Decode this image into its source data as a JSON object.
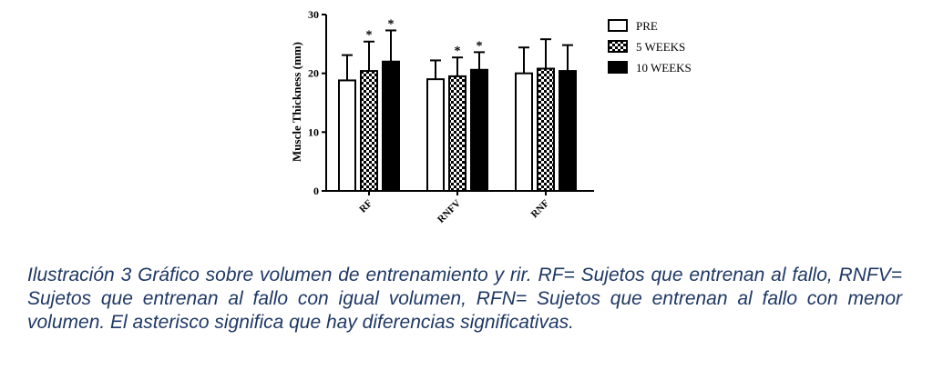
{
  "chart_data": {
    "type": "bar",
    "ylabel": "Muscle Thickness (mm)",
    "ylim": [
      0,
      30
    ],
    "yticks": [
      0,
      10,
      20,
      30
    ],
    "categories": [
      "RF",
      "RNFV",
      "RNF"
    ],
    "series": [
      {
        "name": "PRE",
        "values": [
          18.8,
          19.0,
          20.0
        ],
        "errors": [
          4.3,
          3.2,
          4.4
        ],
        "fill": "white",
        "significant": [
          false,
          false,
          false
        ]
      },
      {
        "name": "5 WEEKS",
        "values": [
          20.4,
          19.5,
          20.8
        ],
        "errors": [
          5.0,
          3.2,
          5.0
        ],
        "fill": "checker",
        "significant": [
          true,
          true,
          false
        ]
      },
      {
        "name": "10 WEEKS",
        "values": [
          22.0,
          20.6,
          20.4
        ],
        "errors": [
          5.3,
          3.0,
          4.4
        ],
        "fill": "black",
        "significant": [
          true,
          true,
          false
        ]
      }
    ],
    "significance_marker": "*",
    "legend_position": "top-right",
    "grid": false
  },
  "caption": "Ilustración 3 Gráfico sobre volumen de entrenamiento y rir. RF= Sujetos que entrenan al fallo, RNFV= Sujetos que entrenan al fallo con igual volumen, RFN= Sujetos que entrenan al fallo con menor volumen. El asterisco significa que hay diferencias significativas."
}
